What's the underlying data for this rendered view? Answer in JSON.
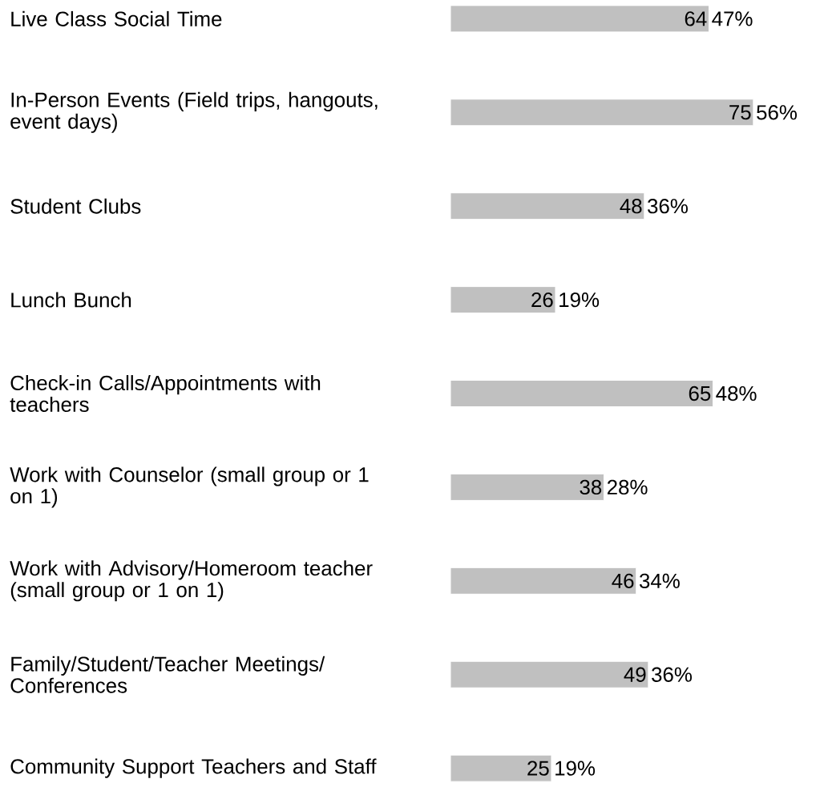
{
  "chart_data": {
    "type": "bar",
    "orientation": "horizontal",
    "data_labels": true,
    "color": "#c0c0c0",
    "categories": [
      "Live Class Social Time",
      "In-Person Events (Field trips, hangouts, event days)",
      "Student Clubs",
      "Lunch Bunch",
      "Check-in Calls/Appointments with teachers",
      "Work with Counselor (small group or 1 on 1)",
      "Work with Advisory/Homeroom teacher (small group or 1 on 1)",
      "Family/Student/Teacher Meetings/ Conferences",
      "Community Support Teachers and Staff"
    ],
    "values": [
      64,
      75,
      48,
      26,
      65,
      38,
      46,
      49,
      25
    ],
    "annotations": [
      {
        "text": "47%",
        "x": 64,
        "y": "Live Class Social Time"
      },
      {
        "text": "56%",
        "x": 75,
        "y": "In-Person Events (Field trips, hangouts, event days)"
      },
      {
        "text": "36%",
        "x": 48,
        "y": "Student Clubs"
      },
      {
        "text": "19%",
        "x": 26,
        "y": "Lunch Bunch"
      },
      {
        "text": "48%",
        "x": 65,
        "y": "Check-in Calls/Appointments with teachers"
      },
      {
        "text": "28%",
        "x": 38,
        "y": "Work with Counselor (small group or 1 on 1)"
      },
      {
        "text": "34%",
        "x": 46,
        "y": "Work with Advisory/Homeroom teacher (small group or 1 on 1)"
      },
      {
        "text": "36%",
        "x": 49,
        "y": "Family/Student/Teacher Meetings/ Conferences"
      },
      {
        "text": "19%",
        "x": 25,
        "y": "Community Support Teachers and Staff"
      }
    ]
  }
}
